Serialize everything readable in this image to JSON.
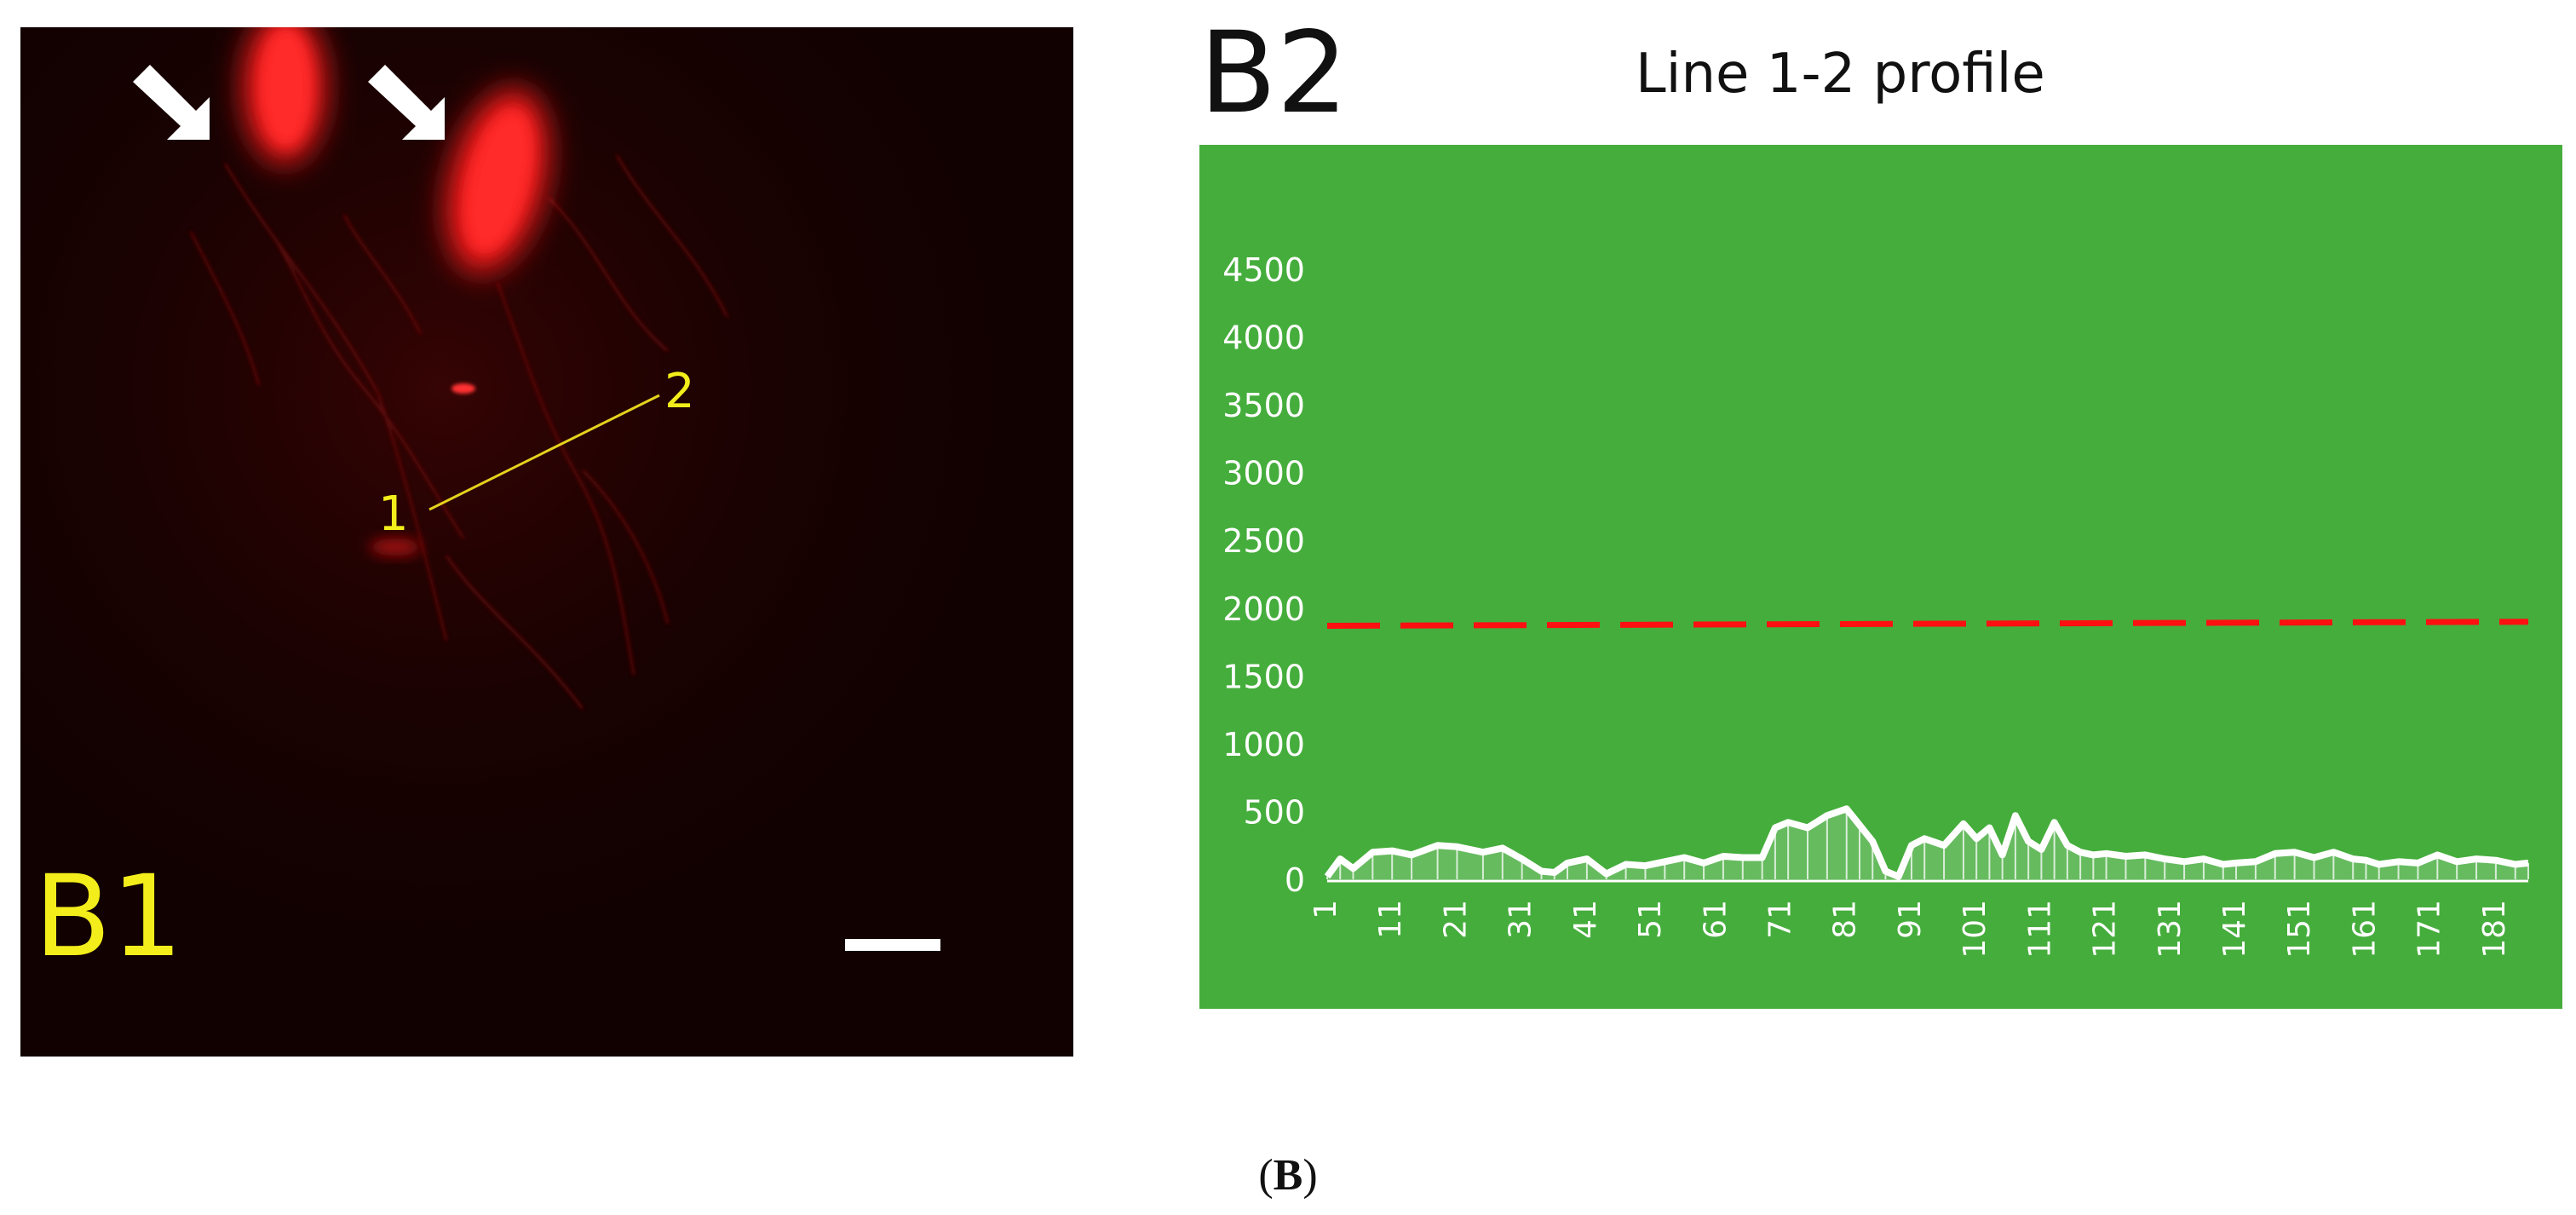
{
  "caption": {
    "open": "(",
    "letter": "B",
    "close": ")"
  },
  "micrograph": {
    "panel_label": "B1",
    "line_start_label": "1",
    "line_end_label": "2",
    "colors": {
      "background": "#120101",
      "signal": "#ff1a1a",
      "line": "#e6d21e",
      "label": "#f3ee1b",
      "arrows": "#ffffff",
      "scale_bar": "#ffffff"
    }
  },
  "chart_data": {
    "type": "line",
    "panel_label": "B2",
    "title": "Line 1-2 profile",
    "xlabel": "",
    "ylabel": "",
    "ylim": [
      0,
      4500
    ],
    "yticks": [
      0,
      500,
      1000,
      1500,
      2000,
      2500,
      3000,
      3500,
      4000,
      4500
    ],
    "xlim": [
      1,
      186
    ],
    "xticks": [
      1,
      11,
      21,
      31,
      41,
      51,
      61,
      71,
      81,
      91,
      101,
      111,
      121,
      131,
      141,
      151,
      161,
      171,
      181
    ],
    "background": "#45ad3c",
    "grid": false,
    "legend": "none",
    "series": [
      {
        "style": "solid-white",
        "color": "#ffffff",
        "x": [
          1,
          3,
          5,
          8,
          11,
          14,
          18,
          21,
          25,
          28,
          31,
          34,
          36,
          38,
          41,
          44,
          47,
          50,
          53,
          56,
          59,
          62,
          65,
          68,
          70,
          72,
          75,
          78,
          81,
          83,
          85,
          87,
          89,
          91,
          93,
          96,
          99,
          101,
          103,
          105,
          107,
          109,
          111,
          113,
          115,
          117,
          119,
          121,
          124,
          127,
          130,
          133,
          136,
          139,
          141,
          144,
          147,
          150,
          153,
          156,
          159,
          161,
          163,
          166,
          169,
          172,
          175,
          178,
          181,
          184,
          186
        ],
        "values": [
          20,
          150,
          80,
          200,
          210,
          180,
          250,
          240,
          200,
          230,
          150,
          60,
          50,
          120,
          150,
          40,
          110,
          100,
          130,
          160,
          120,
          170,
          160,
          160,
          380,
          420,
          380,
          470,
          520,
          400,
          280,
          60,
          20,
          250,
          300,
          250,
          410,
          300,
          380,
          180,
          470,
          280,
          220,
          420,
          250,
          200,
          180,
          190,
          170,
          180,
          150,
          130,
          150,
          110,
          120,
          130,
          190,
          200,
          160,
          200,
          150,
          140,
          110,
          130,
          120,
          180,
          130,
          150,
          140,
          110,
          120
        ]
      },
      {
        "style": "dashed-red",
        "color": "#ff1010",
        "x": [
          1,
          186
        ],
        "values": [
          1870,
          1900
        ]
      }
    ]
  }
}
